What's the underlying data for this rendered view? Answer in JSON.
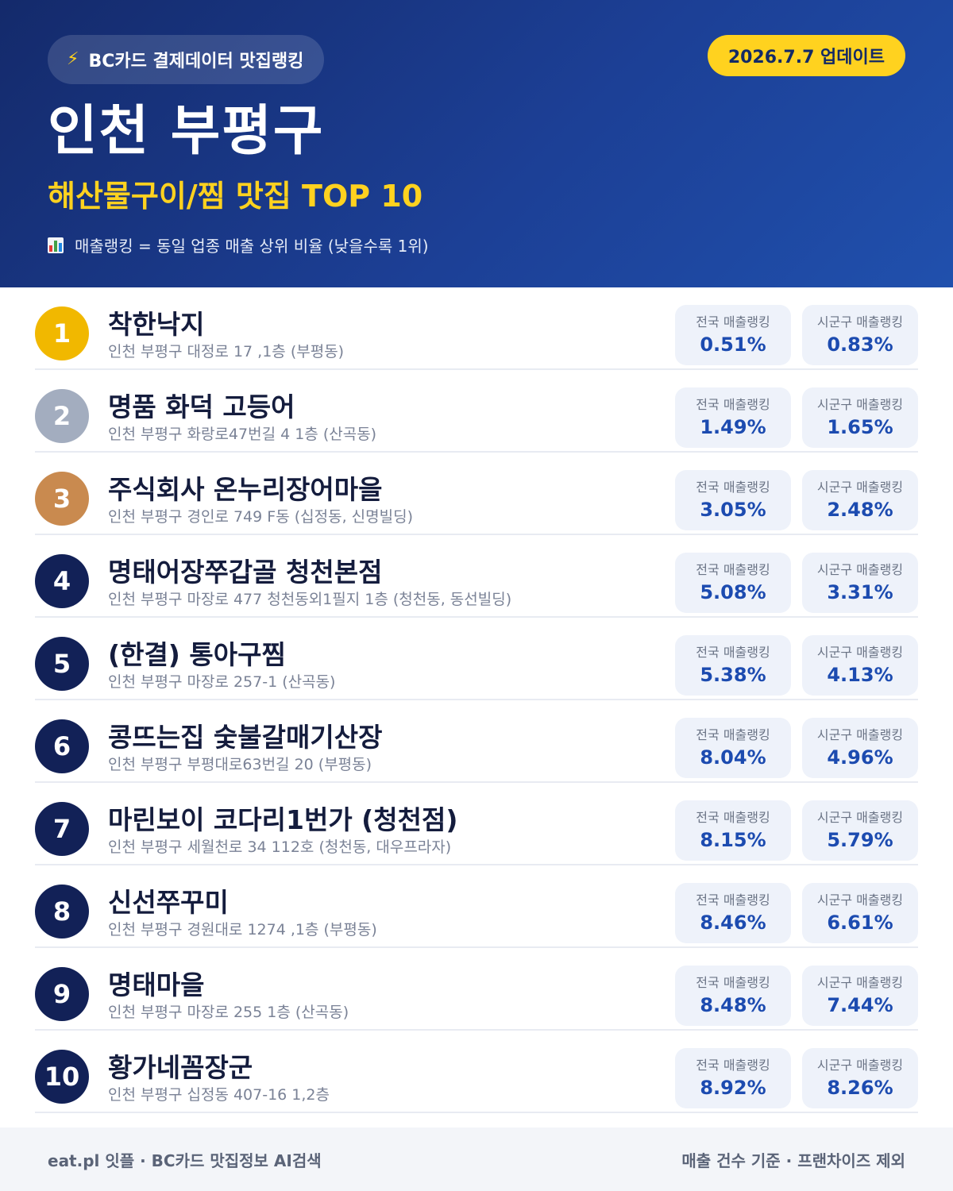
{
  "header": {
    "brand_label": "BC카드 결제데이터 맛집랭킹",
    "brand_icon": "lightning-icon",
    "update_label": "2026.7.7 업데이트",
    "region": "인천 부평구",
    "category": "해산물구이/찜 맛집 TOP 10",
    "legend_icon": "bar-chart-icon",
    "legend_note": "매출랭킹 = 동일 업종 매출 상위 비율 (낮을수록 1위)",
    "accent_color": "#ffd21f",
    "background_color": "#1c3f95"
  },
  "columns": {
    "national_label": "전국 매출랭킹",
    "district_label": "시군구 매출랭킹"
  },
  "badge_colors": {
    "gold": "#f1b800",
    "silver": "#a3adbf",
    "bronze": "#c98a4f",
    "default": "#122157"
  },
  "restaurants": [
    {
      "rank": "1",
      "name": "착한낙지",
      "address": "인천 부평구 대정로 17 ,1층 (부평동)",
      "national": "0.51%",
      "district": "0.83%",
      "badge": "gold"
    },
    {
      "rank": "2",
      "name": "명품 화덕 고등어",
      "address": "인천 부평구 화랑로47번길 4 1층 (산곡동)",
      "national": "1.49%",
      "district": "1.65%",
      "badge": "silver"
    },
    {
      "rank": "3",
      "name": "주식회사 온누리장어마을",
      "address": "인천 부평구 경인로 749 F동 (십정동, 신명빌딩)",
      "national": "3.05%",
      "district": "2.48%",
      "badge": "bronze"
    },
    {
      "rank": "4",
      "name": "명태어장쭈갑골 청천본점",
      "address": "인천 부평구 마장로 477 청천동외1필지 1층 (청천동, 동선빌딩)",
      "national": "5.08%",
      "district": "3.31%",
      "badge": "default"
    },
    {
      "rank": "5",
      "name": "(한결) 통아구찜",
      "address": "인천 부평구 마장로 257-1 (산곡동)",
      "national": "5.38%",
      "district": "4.13%",
      "badge": "default"
    },
    {
      "rank": "6",
      "name": "콩뜨는집 숯불갈매기산장",
      "address": "인천 부평구 부평대로63번길 20 (부평동)",
      "national": "8.04%",
      "district": "4.96%",
      "badge": "default"
    },
    {
      "rank": "7",
      "name": "마린보이 코다리1번가 (청천점)",
      "address": "인천 부평구 세월천로 34 112호 (청천동, 대우프라자)",
      "national": "8.15%",
      "district": "5.79%",
      "badge": "default"
    },
    {
      "rank": "8",
      "name": "신선쭈꾸미",
      "address": "인천 부평구 경원대로 1274 ,1층 (부평동)",
      "national": "8.46%",
      "district": "6.61%",
      "badge": "default"
    },
    {
      "rank": "9",
      "name": "명태마을",
      "address": "인천 부평구 마장로 255 1층 (산곡동)",
      "national": "8.48%",
      "district": "7.44%",
      "badge": "default"
    },
    {
      "rank": "10",
      "name": "황가네꼼장군",
      "address": "인천 부평구 십정동 407-16 1,2층",
      "national": "8.92%",
      "district": "8.26%",
      "badge": "default"
    }
  ],
  "footer": {
    "left": "eat.pl 잇플 · BC카드 맛집정보 AI검색",
    "right": "매출 건수 기준 · 프랜차이즈 제외"
  }
}
